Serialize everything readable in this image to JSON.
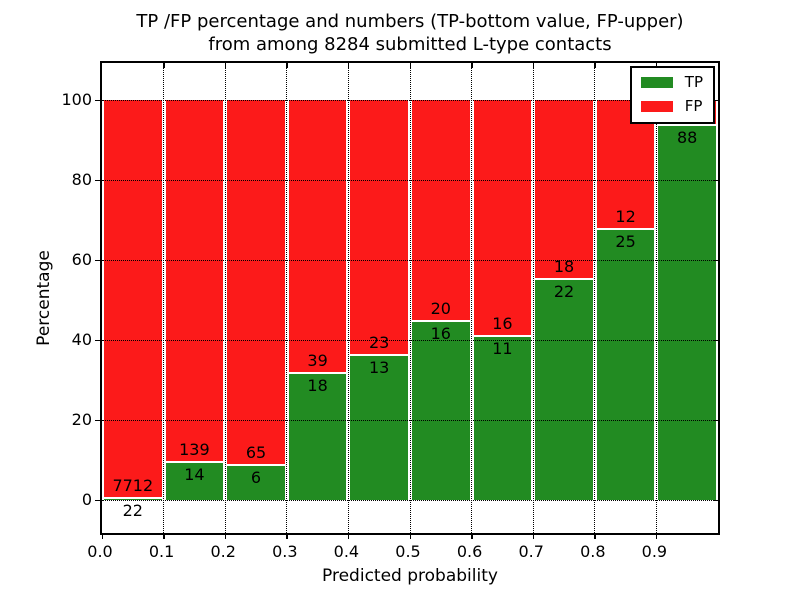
{
  "title": {
    "line1": "TP /FP percentage and numbers (TP-bottom value, FP-upper)",
    "line2": "from among 8284 submitted L-type contacts"
  },
  "axes": {
    "xlabel": "Predicted probability",
    "ylabel": "Percentage",
    "x_tick_labels": [
      "0.0",
      "0.1",
      "0.2",
      "0.3",
      "0.4",
      "0.5",
      "0.6",
      "0.7",
      "0.8",
      "0.9"
    ],
    "y_tick_labels": [
      "0",
      "20",
      "40",
      "60",
      "80",
      "100"
    ],
    "y_tick_values": [
      0,
      20,
      40,
      60,
      80,
      100
    ]
  },
  "legend": {
    "items": [
      {
        "label": "TP",
        "color": "#228b22"
      },
      {
        "label": "FP",
        "color": "#fc1a1a"
      }
    ]
  },
  "colors": {
    "tp": "#228b22",
    "fp": "#fc1a1a",
    "background": "#ffffff",
    "text": "#000000"
  },
  "chart_data": {
    "type": "bar",
    "stacked": true,
    "normalized_to_percent": true,
    "title": "TP /FP percentage and numbers (TP-bottom value, FP-upper) from among 8284 submitted L-type contacts",
    "xlabel": "Predicted probability",
    "ylabel": "Percentage",
    "xlim": [
      0.0,
      1.0
    ],
    "ylim": [
      -10,
      110
    ],
    "grid": true,
    "legend_position": "upper right",
    "total_submitted_contacts": 8284,
    "series_names": [
      "TP",
      "FP"
    ],
    "bins": [
      {
        "range": [
          0.0,
          0.1
        ],
        "tp": 22,
        "fp": 7712,
        "tp_pct": 0.3
      },
      {
        "range": [
          0.1,
          0.2
        ],
        "tp": 14,
        "fp": 139,
        "tp_pct": 9.2
      },
      {
        "range": [
          0.2,
          0.3
        ],
        "tp": 6,
        "fp": 65,
        "tp_pct": 8.5
      },
      {
        "range": [
          0.3,
          0.4
        ],
        "tp": 18,
        "fp": 39,
        "tp_pct": 31.6
      },
      {
        "range": [
          0.4,
          0.5
        ],
        "tp": 13,
        "fp": 23,
        "tp_pct": 36.1
      },
      {
        "range": [
          0.5,
          0.6
        ],
        "tp": 16,
        "fp": 20,
        "tp_pct": 44.4
      },
      {
        "range": [
          0.6,
          0.7
        ],
        "tp": 11,
        "fp": 16,
        "tp_pct": 40.7
      },
      {
        "range": [
          0.7,
          0.8
        ],
        "tp": 22,
        "fp": 18,
        "tp_pct": 55.0
      },
      {
        "range": [
          0.8,
          0.9
        ],
        "tp": 25,
        "fp": 12,
        "tp_pct": 67.6
      },
      {
        "range": [
          0.9,
          1.0
        ],
        "tp": 88,
        "fp": null,
        "tp_pct": 93.6,
        "fp_label_hidden_by_legend": true
      }
    ]
  }
}
